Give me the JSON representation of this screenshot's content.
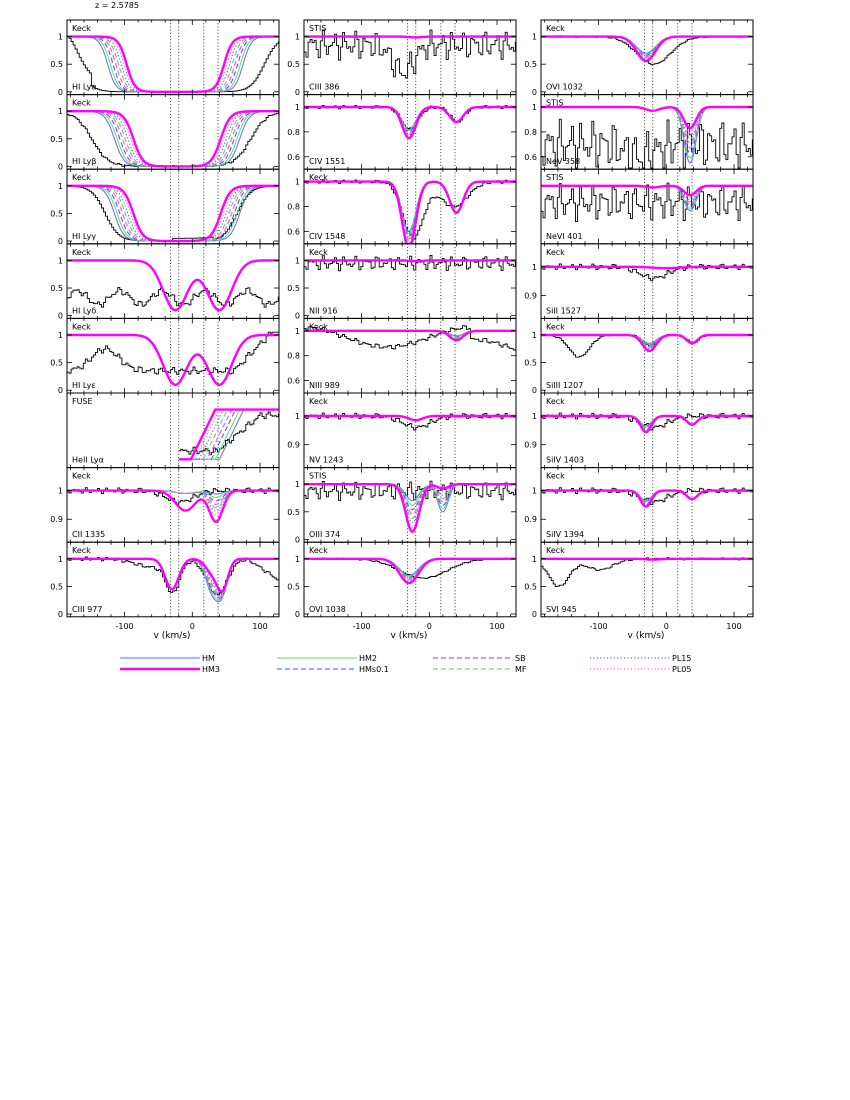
{
  "figure": {
    "redshift_label": "z = 2.5785",
    "xlabel": "v (km/s)"
  },
  "chart_data": {
    "type": "line",
    "xlim": [
      -185,
      128
    ],
    "xticks": [
      -100,
      0,
      100
    ],
    "velocity_markers": [
      -32,
      -20,
      17,
      38
    ],
    "legend": [
      {
        "name": "HM",
        "color": "#6666ff",
        "style": "solid",
        "width": 1
      },
      {
        "name": "HM3",
        "color": "#ff00ff",
        "style": "solid",
        "width": 2.4
      },
      {
        "name": "HM2",
        "color": "#66dd66",
        "style": "solid",
        "width": 1
      },
      {
        "name": "HMs0.1",
        "color": "#3355ee",
        "style": "dashed",
        "width": 1
      },
      {
        "name": "SB",
        "color": "#ff66ff",
        "style": "dashed",
        "width": 1.4
      },
      {
        "name": "MF",
        "color": "#55cc55",
        "style": "dashed",
        "width": 1
      },
      {
        "name": "PL15",
        "color": "#6666ff",
        "style": "dotted",
        "width": 1.2
      },
      {
        "name": "PL05",
        "color": "#ff66ff",
        "style": "dotted",
        "width": 1.2
      }
    ],
    "panels": [
      {
        "ion": "HI Lyα",
        "instrument": "Keck",
        "ylim": [
          -0.05,
          1.3
        ],
        "yticks": [
          0,
          0.5,
          1
        ],
        "ytick_labels": [
          "0",
          "0.5",
          "1"
        ]
      },
      {
        "ion": "HI Lyβ",
        "instrument": "Keck",
        "ylim": [
          -0.05,
          1.3
        ],
        "yticks": [
          0,
          0.5,
          1
        ],
        "ytick_labels": [
          "0",
          "0.5",
          "1"
        ]
      },
      {
        "ion": "HI Lyγ",
        "instrument": "Keck",
        "ylim": [
          -0.05,
          1.3
        ],
        "yticks": [
          0,
          0.5,
          1
        ],
        "ytick_labels": [
          "0",
          "0.5",
          "1"
        ]
      },
      {
        "ion": "HI Lyδ",
        "instrument": "Keck",
        "ylim": [
          -0.05,
          1.3
        ],
        "yticks": [
          0,
          0.5,
          1
        ],
        "ytick_labels": [
          "0",
          "0.5",
          "1"
        ]
      },
      {
        "ion": "HI Lyε",
        "instrument": "Keck",
        "ylim": [
          -0.05,
          1.3
        ],
        "yticks": [
          0,
          0.5,
          1
        ],
        "ytick_labels": [
          "0",
          "0.5",
          "1"
        ]
      },
      {
        "ion": "HeII Lyα",
        "instrument": "FUSE",
        "ylim": [
          -0.05,
          1.3
        ],
        "yticks": [],
        "ytick_labels": []
      },
      {
        "ion": "CII 1335",
        "instrument": "Keck",
        "ylim": [
          0.82,
          1.08
        ],
        "yticks": [
          0.9,
          1
        ],
        "ytick_labels": [
          "0.9",
          "1"
        ]
      },
      {
        "ion": "CIII 977",
        "instrument": "Keck",
        "ylim": [
          -0.05,
          1.3
        ],
        "yticks": [
          0,
          0.5,
          1
        ],
        "ytick_labels": [
          "0",
          "0.5",
          "1"
        ]
      },
      {
        "ion": "CIII 386",
        "instrument": "STIS",
        "ylim": [
          -0.05,
          1.3
        ],
        "yticks": [
          0,
          0.5,
          1
        ],
        "ytick_labels": [
          "0",
          "0.5",
          "1"
        ]
      },
      {
        "ion": "CIV 1551",
        "instrument": "",
        "ylim": [
          0.5,
          1.1
        ],
        "yticks": [
          0.6,
          0.8,
          1
        ],
        "ytick_labels": [
          "0.6",
          "0.8",
          "1"
        ]
      },
      {
        "ion": "CIV 1548",
        "instrument": "Keck",
        "ylim": [
          0.5,
          1.1
        ],
        "yticks": [
          0.6,
          0.8,
          1
        ],
        "ytick_labels": [
          "0.6",
          "0.8",
          "1"
        ]
      },
      {
        "ion": "NII 916",
        "instrument": "Keck",
        "ylim": [
          -0.05,
          1.3
        ],
        "yticks": [
          0,
          0.5,
          1
        ],
        "ytick_labels": [
          "0",
          "0.5",
          "1"
        ]
      },
      {
        "ion": "NIII 989",
        "instrument": "Keck",
        "ylim": [
          0.5,
          1.1
        ],
        "yticks": [
          0.6,
          0.8,
          1
        ],
        "ytick_labels": [
          "0.6",
          "0.8",
          "1"
        ]
      },
      {
        "ion": "NV 1243",
        "instrument": "Keck",
        "ylim": [
          0.82,
          1.08
        ],
        "yticks": [
          0.9,
          1
        ],
        "ytick_labels": [
          "0.9",
          "1"
        ]
      },
      {
        "ion": "OIII 374",
        "instrument": "STIS",
        "ylim": [
          -0.05,
          1.3
        ],
        "yticks": [
          0,
          0.5,
          1
        ],
        "ytick_labels": [
          "0",
          "0.5",
          "1"
        ]
      },
      {
        "ion": "OVI 1038",
        "instrument": "Keck",
        "ylim": [
          -0.05,
          1.3
        ],
        "yticks": [
          0,
          0.5,
          1
        ],
        "ytick_labels": [
          "0",
          "0.5",
          "1"
        ]
      },
      {
        "ion": "OVI 1032",
        "instrument": "Keck",
        "ylim": [
          -0.05,
          1.3
        ],
        "yticks": [
          0,
          0.5,
          1
        ],
        "ytick_labels": [
          "0",
          "0.5",
          "1"
        ]
      },
      {
        "ion": "NeV 358",
        "instrument": "STIS",
        "ylim": [
          0.5,
          1.1
        ],
        "yticks": [
          0.6,
          0.8,
          1
        ],
        "ytick_labels": [
          "0.6",
          "0.8",
          "1"
        ]
      },
      {
        "ion": "NeVI 401",
        "instrument": "STIS",
        "ylim": [
          -0.05,
          1.3
        ],
        "yticks": [],
        "ytick_labels": []
      },
      {
        "ion": "SiII 1527",
        "instrument": "Keck",
        "ylim": [
          0.82,
          1.08
        ],
        "yticks": [
          0.9,
          1
        ],
        "ytick_labels": [
          "0.9",
          "1"
        ]
      },
      {
        "ion": "SiIII 1207",
        "instrument": "Keck",
        "ylim": [
          -0.05,
          1.3
        ],
        "yticks": [
          0,
          0.5,
          1
        ],
        "ytick_labels": [
          "0",
          "0.5",
          "1"
        ]
      },
      {
        "ion": "SiIV 1403",
        "instrument": "Keck",
        "ylim": [
          0.82,
          1.08
        ],
        "yticks": [
          0.9,
          1
        ],
        "ytick_labels": [
          "0.9",
          "1"
        ]
      },
      {
        "ion": "SiIV 1394",
        "instrument": "Keck",
        "ylim": [
          0.82,
          1.08
        ],
        "yticks": [
          0.9,
          1
        ],
        "ytick_labels": [
          "0.9",
          "1"
        ]
      },
      {
        "ion": "SVI 945",
        "instrument": "Keck",
        "ylim": [
          -0.05,
          1.3
        ],
        "yticks": [
          0,
          0.5,
          1
        ],
        "ytick_labels": [
          "0",
          "0.5",
          "1"
        ]
      }
    ]
  }
}
